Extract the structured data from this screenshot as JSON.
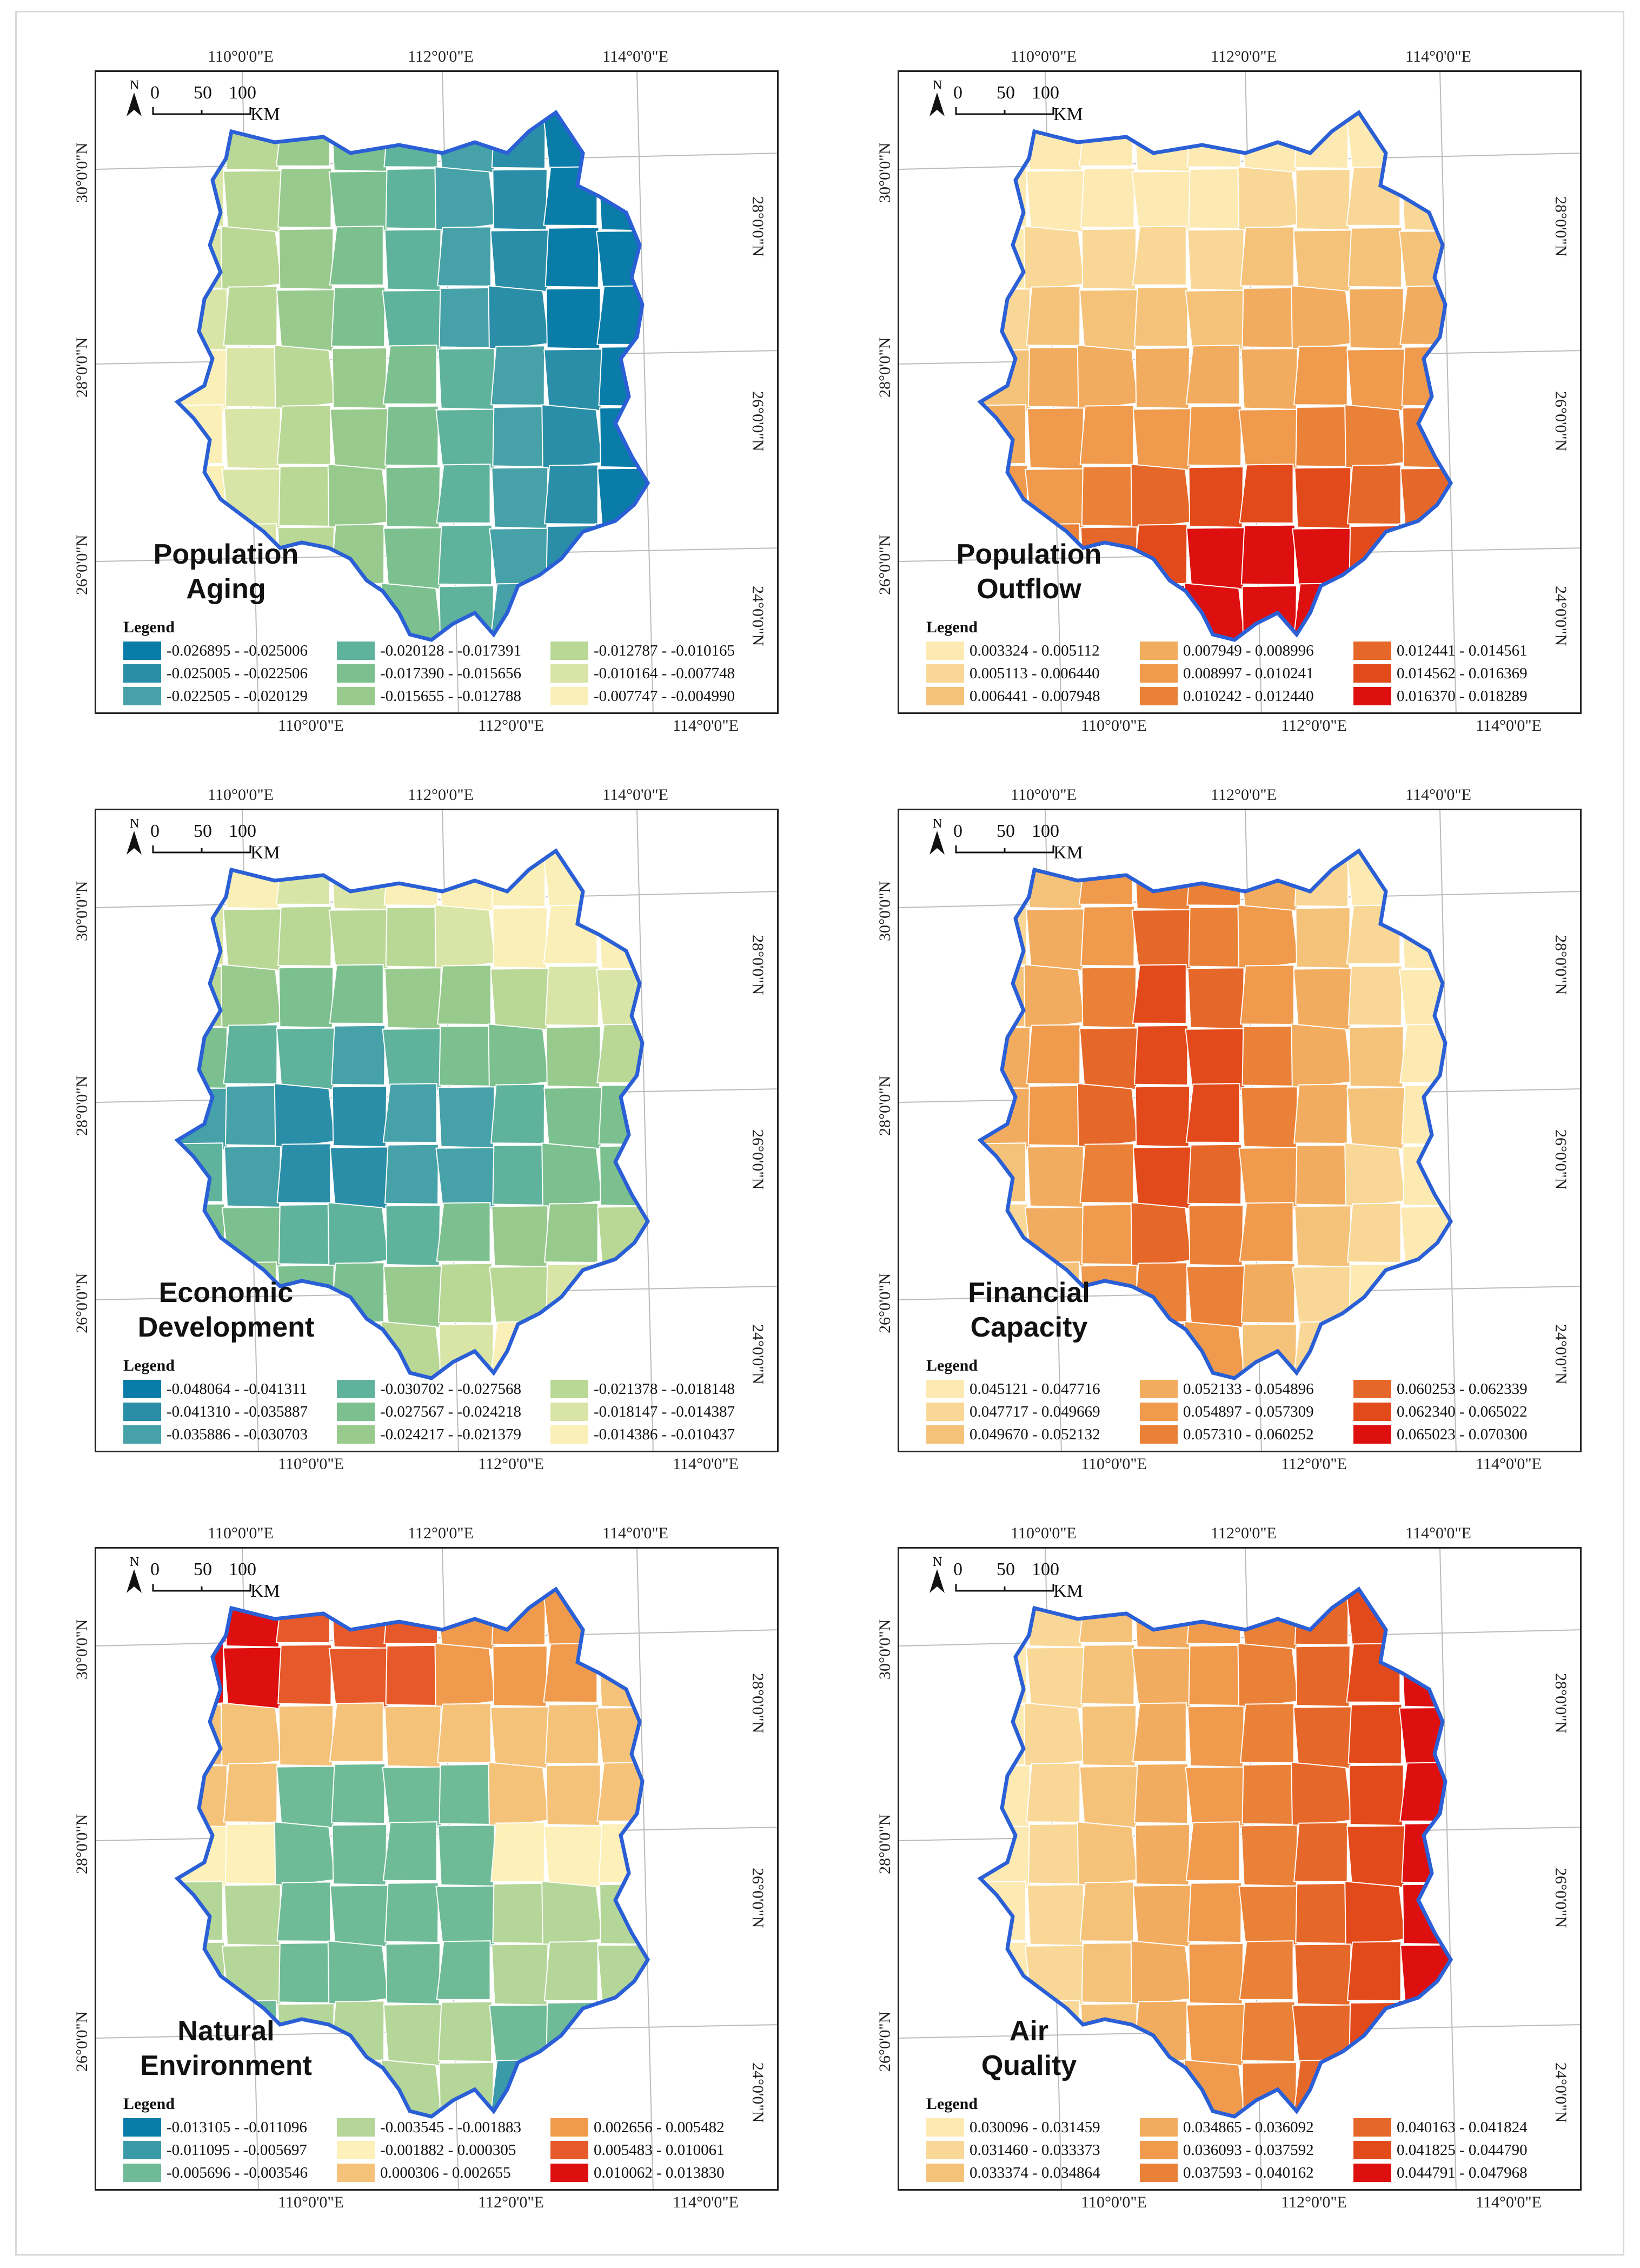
{
  "axes": {
    "top_bottom_labels": [
      "110°0'0\"E",
      "112°0'0\"E",
      "114°0'0\"E"
    ],
    "left_labels": [
      "30°0'0\"N",
      "28°0'0\"N",
      "26°0'0\"N"
    ],
    "right_labels": [
      "28°0'0\"N",
      "26°0'0\"N",
      "24°0'0\"N"
    ]
  },
  "scale": {
    "n": "N",
    "ticks": [
      "0",
      "50",
      "100"
    ],
    "unit": "KM"
  },
  "legend_word": "Legend",
  "panels": [
    {
      "title_lines": [
        "Population",
        "Aging"
      ],
      "classes": [
        {
          "label": "-0.026895 - -0.025006",
          "color": "#0a7ca8"
        },
        {
          "label": "-0.025005 - -0.022506",
          "color": "#2b8ea8"
        },
        {
          "label": "-0.022505 - -0.020129",
          "color": "#46a2a8"
        },
        {
          "label": "-0.020128 - -0.017391",
          "color": "#5fb39c"
        },
        {
          "label": "-0.017390 - -0.015656",
          "color": "#7cc08f"
        },
        {
          "label": "-0.015655 - -0.012788",
          "color": "#99ca8d"
        },
        {
          "label": "-0.012787 - -0.010165",
          "color": "#b9d795"
        },
        {
          "label": "-0.010164 - -0.007748",
          "color": "#d9e5a6"
        },
        {
          "label": "-0.007747 - -0.004990",
          "color": "#fbefb8"
        }
      ]
    },
    {
      "title_lines": [
        "Population",
        "Outflow"
      ],
      "classes": [
        {
          "label": "0.003324 - 0.005112",
          "color": "#fde9b2"
        },
        {
          "label": "0.005113 - 0.006440",
          "color": "#f9d796"
        },
        {
          "label": "0.006441 - 0.007948",
          "color": "#f5c27a"
        },
        {
          "label": "0.007949 - 0.008996",
          "color": "#f2ac5f"
        },
        {
          "label": "0.008997 - 0.010241",
          "color": "#ef9a4d"
        },
        {
          "label": "0.010242 - 0.012440",
          "color": "#ea8138"
        },
        {
          "label": "0.012441 - 0.014561",
          "color": "#e6672a"
        },
        {
          "label": "0.014562 - 0.016369",
          "color": "#e34a1b"
        },
        {
          "label": "0.016370 - 0.018289",
          "color": "#dd0f0f"
        }
      ]
    },
    {
      "title_lines": [
        "Economic",
        "Development"
      ],
      "classes": [
        {
          "label": "-0.048064 - -0.041311",
          "color": "#0a7ca8"
        },
        {
          "label": "-0.041310 - -0.035887",
          "color": "#2b8ea8"
        },
        {
          "label": "-0.035886 - -0.030703",
          "color": "#46a2a8"
        },
        {
          "label": "-0.030702 - -0.027568",
          "color": "#5fb39c"
        },
        {
          "label": "-0.027567 - -0.024218",
          "color": "#7cc08f"
        },
        {
          "label": "-0.024217 - -0.021379",
          "color": "#99ca8d"
        },
        {
          "label": "-0.021378 - -0.018148",
          "color": "#b9d795"
        },
        {
          "label": "-0.018147 - -0.014387",
          "color": "#d9e5a6"
        },
        {
          "label": "-0.014386 - -0.010437",
          "color": "#fbefb8"
        }
      ]
    },
    {
      "title_lines": [
        "Financial",
        "Capacity"
      ],
      "classes": [
        {
          "label": "0.045121 - 0.047716",
          "color": "#fde9b2"
        },
        {
          "label": "0.047717 - 0.049669",
          "color": "#f9d796"
        },
        {
          "label": "0.049670 - 0.052132",
          "color": "#f5c27a"
        },
        {
          "label": "0.052133 - 0.054896",
          "color": "#f2ac5f"
        },
        {
          "label": "0.054897 - 0.057309",
          "color": "#ef9a4d"
        },
        {
          "label": "0.057310 - 0.060252",
          "color": "#ea8138"
        },
        {
          "label": "0.060253 - 0.062339",
          "color": "#e6672a"
        },
        {
          "label": "0.062340 - 0.065022",
          "color": "#e34a1b"
        },
        {
          "label": "0.065023 - 0.070300",
          "color": "#dd0f0f"
        }
      ]
    },
    {
      "title_lines": [
        "Natural",
        "Environment"
      ],
      "classes": [
        {
          "label": "-0.013105 - -0.011096",
          "color": "#0a7ca8"
        },
        {
          "label": "-0.011095 - -0.005697",
          "color": "#3b9aa8"
        },
        {
          "label": "-0.005696 - -0.003546",
          "color": "#6fbb98"
        },
        {
          "label": "-0.003545 - -0.001883",
          "color": "#b5d699"
        },
        {
          "label": "-0.001882 - 0.000305",
          "color": "#fdf0b8"
        },
        {
          "label": "0.000306 - 0.002655",
          "color": "#f5c27a"
        },
        {
          "label": "0.002656 - 0.005482",
          "color": "#ef9a4d"
        },
        {
          "label": "0.005483 - 0.010061",
          "color": "#e6592a"
        },
        {
          "label": "0.010062 - 0.013830",
          "color": "#dd0f0f"
        }
      ]
    },
    {
      "title_lines": [
        "Air",
        "Quality"
      ],
      "classes": [
        {
          "label": "0.030096 - 0.031459",
          "color": "#fde9b2"
        },
        {
          "label": "0.031460 - 0.033373",
          "color": "#f9d796"
        },
        {
          "label": "0.033374 - 0.034864",
          "color": "#f5c27a"
        },
        {
          "label": "0.034865 - 0.036092",
          "color": "#f2ac5f"
        },
        {
          "label": "0.036093 - 0.037592",
          "color": "#ef9a4d"
        },
        {
          "label": "0.037593 - 0.040162",
          "color": "#ea8138"
        },
        {
          "label": "0.040163 - 0.041824",
          "color": "#e6672a"
        },
        {
          "label": "0.041825 - 0.044790",
          "color": "#e34a1b"
        },
        {
          "label": "0.044791 - 0.047968",
          "color": "#dd0f0f"
        }
      ]
    }
  ]
}
